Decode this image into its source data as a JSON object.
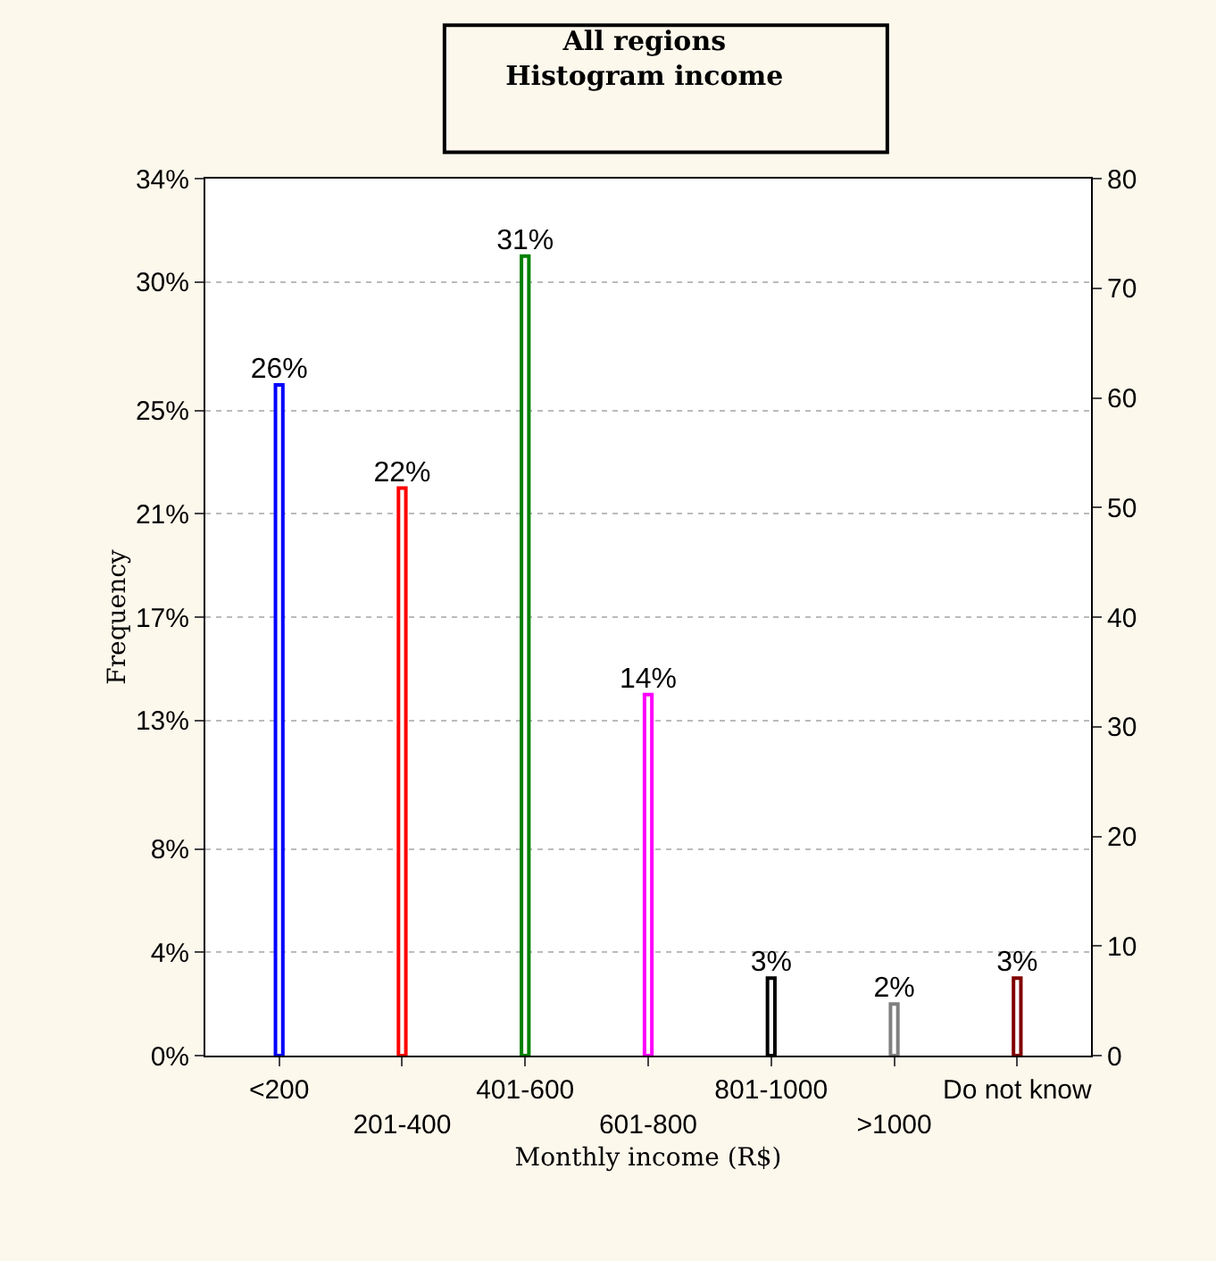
{
  "chart_data": {
    "type": "bar",
    "title": "All regions\nHistogram income",
    "xlabel": "Monthly income (R$)",
    "ylabel": "Frequency",
    "categories": [
      "<200",
      "201-400",
      "401-600",
      "601-800",
      "801-1000",
      ">1000",
      "Do not know"
    ],
    "values": [
      26,
      22,
      31,
      14,
      3,
      2,
      3
    ],
    "colors": [
      "#0000ff",
      "#ff0000",
      "#008000",
      "#ff00ff",
      "#000000",
      "#808080",
      "#800000"
    ],
    "value_labels": [
      "26%",
      "22%",
      "31%",
      "14%",
      "3%",
      "2%",
      "3%"
    ],
    "ylim": [
      0,
      34
    ],
    "yticks": [
      {
        "value": 0,
        "label": "0%"
      },
      {
        "value": 4,
        "label": "4%"
      },
      {
        "value": 8,
        "label": "8%"
      },
      {
        "value": 13,
        "label": "13%"
      },
      {
        "value": 17,
        "label": "17%"
      },
      {
        "value": 21,
        "label": "21%"
      },
      {
        "value": 25,
        "label": "25%"
      },
      {
        "value": 30,
        "label": "30%"
      },
      {
        "value": 34,
        "label": "34%"
      }
    ],
    "y2lim": [
      0,
      80
    ],
    "y2ticks": [
      0,
      10,
      20,
      30,
      40,
      50,
      60,
      70,
      80
    ],
    "grid": "y"
  }
}
